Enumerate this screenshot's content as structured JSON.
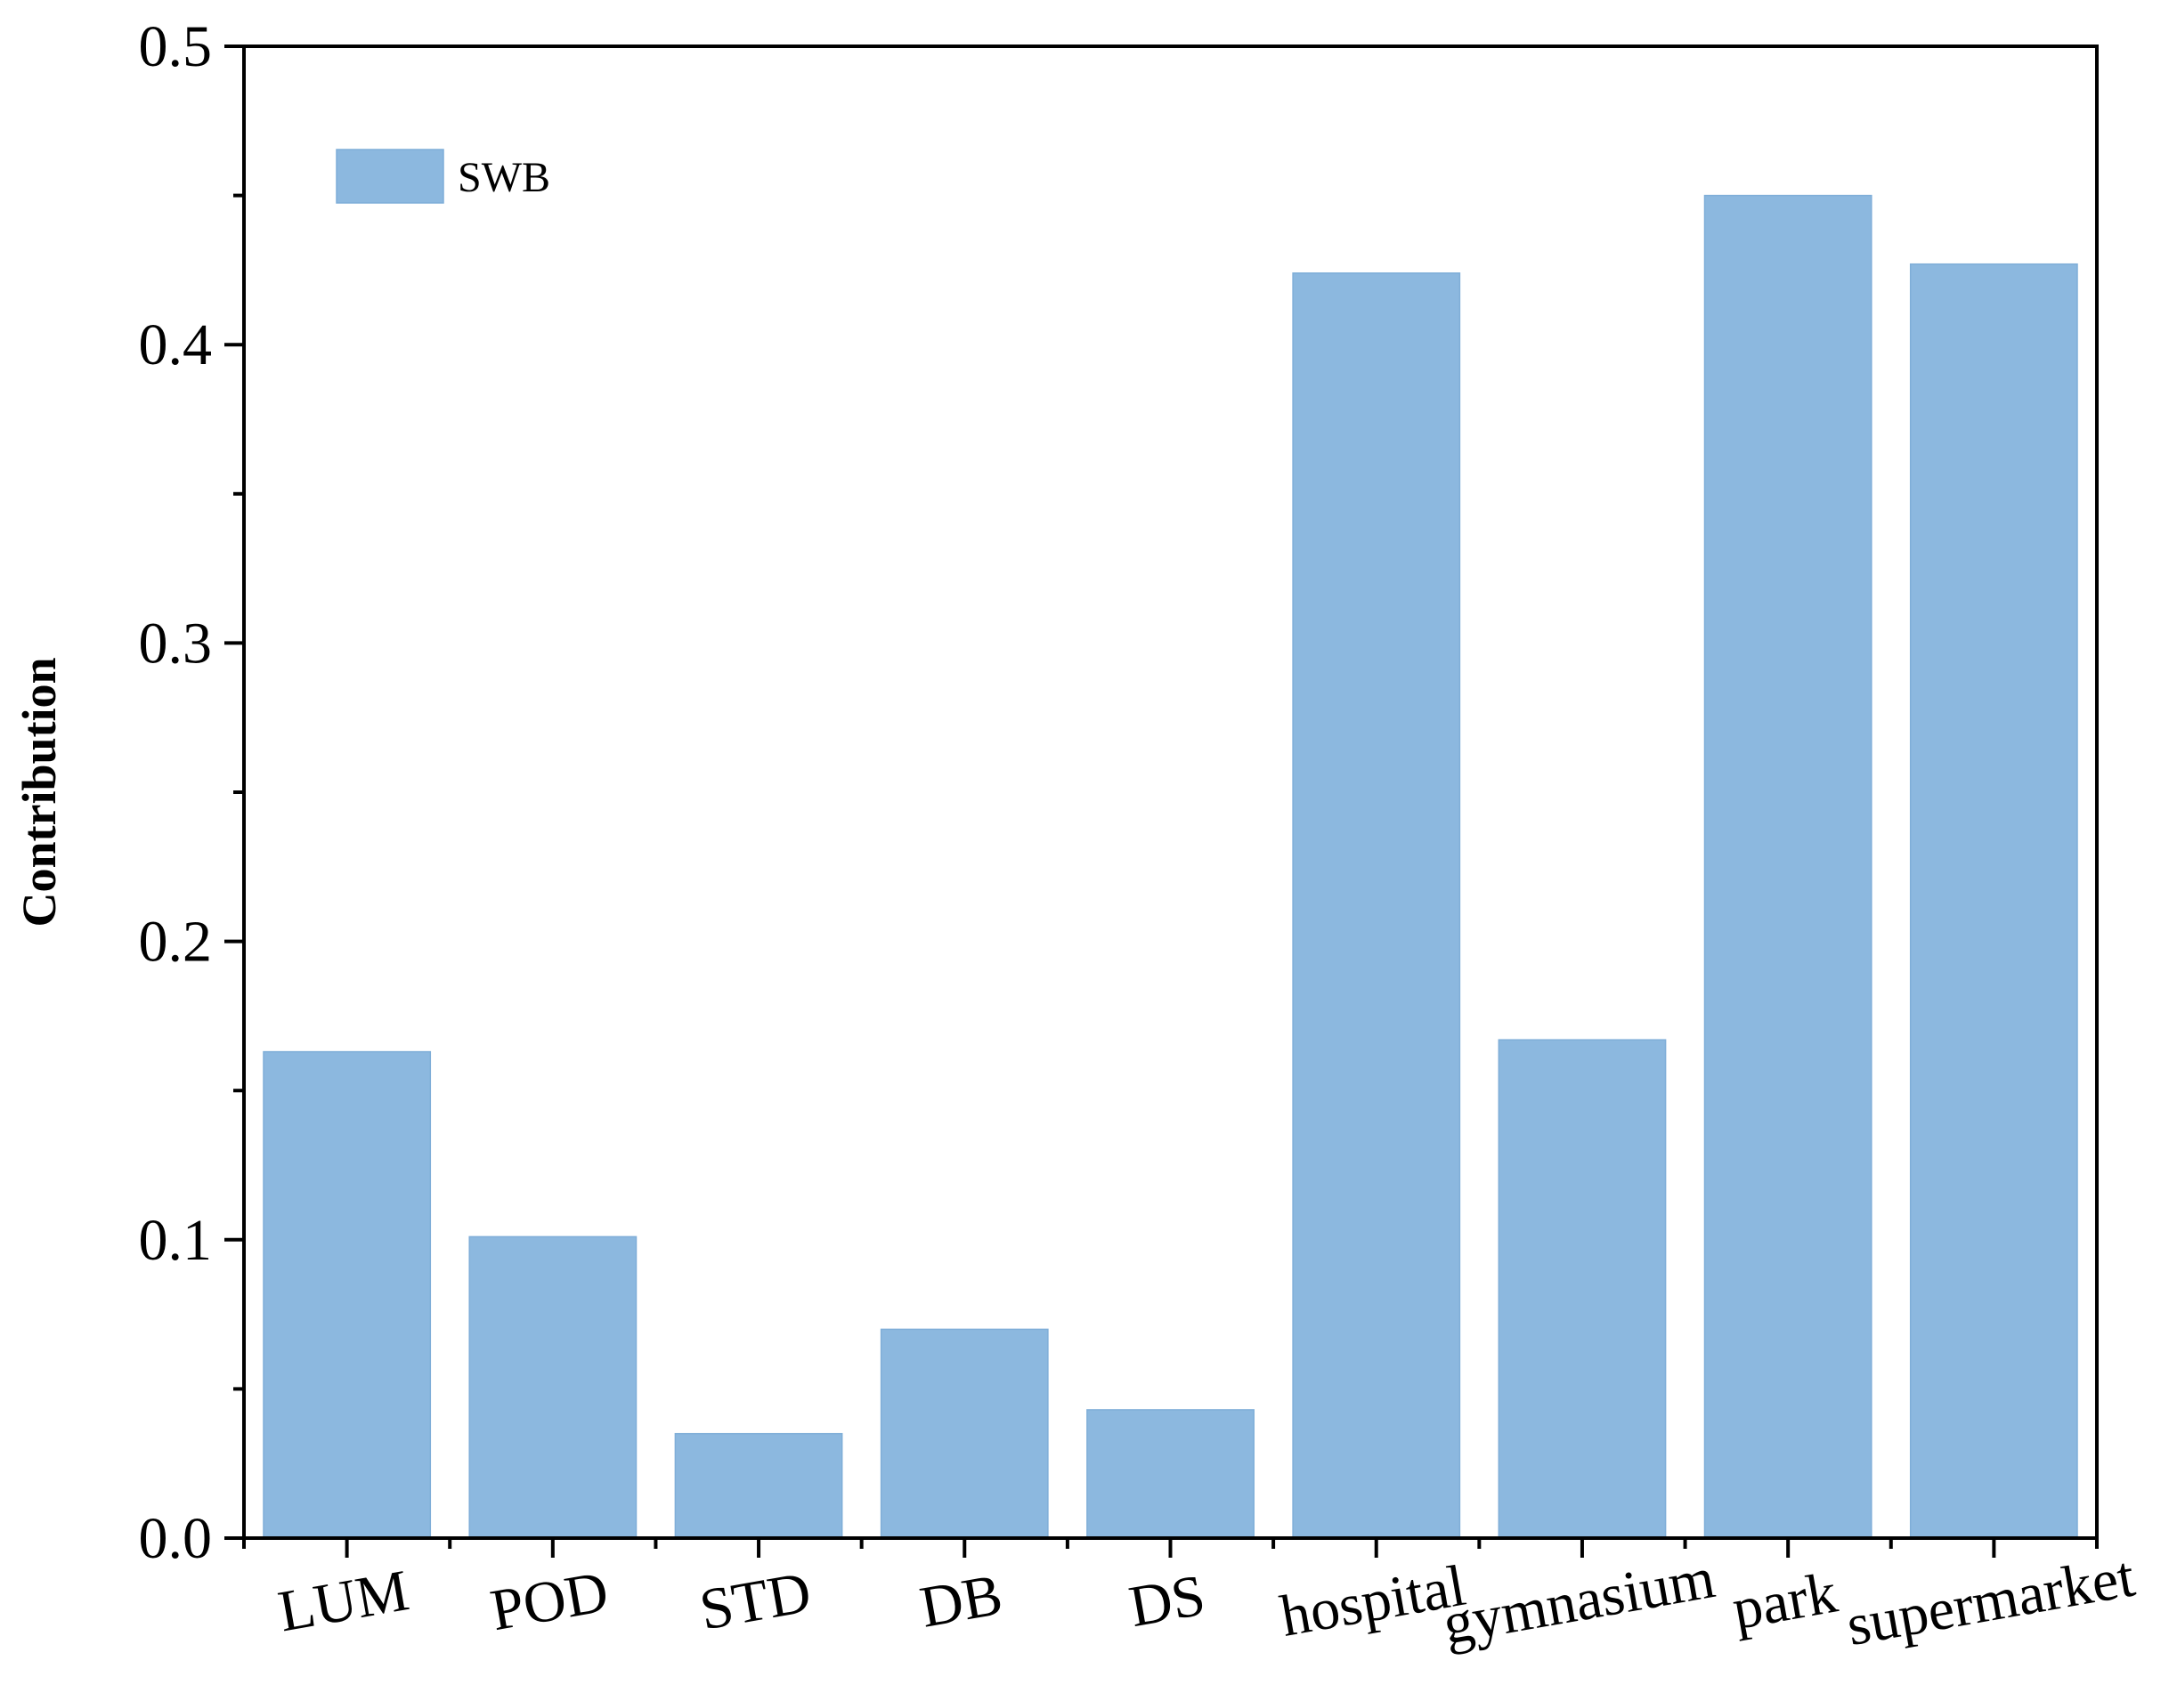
{
  "chart_data": {
    "type": "bar",
    "categories": [
      "LUM",
      "POD",
      "STD",
      "DB",
      "DS",
      "hospital",
      "gymnasium",
      "park",
      "supermarket"
    ],
    "series": [
      {
        "name": "SWB",
        "values": [
          0.163,
          0.101,
          0.035,
          0.07,
          0.043,
          0.424,
          0.167,
          0.45,
          0.427
        ],
        "color": "#8CB8DF"
      }
    ],
    "title": "",
    "xlabel": "",
    "ylabel": "Contribution",
    "ylim": [
      0,
      0.5
    ],
    "yticks": [
      "0.0",
      "0.1",
      "0.2",
      "0.3",
      "0.4",
      "0.5"
    ],
    "y_minor_step": 0.05,
    "grid": false,
    "legend_position": "top-left",
    "x_label_rotation_deg": -10
  }
}
